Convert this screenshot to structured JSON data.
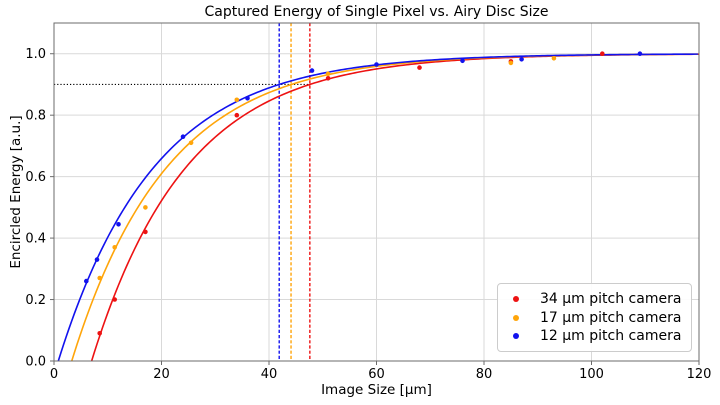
{
  "chart_data": {
    "type": "scatter",
    "title": "Captured Energy of Single Pixel vs. Airy Disc Size",
    "xlabel": "Image Size [μm]",
    "ylabel": "Encircled Energy [a.u.]",
    "xlim": [
      0,
      120
    ],
    "ylim": [
      0,
      1.1
    ],
    "xticks": [
      0,
      20,
      40,
      60,
      80,
      100,
      120
    ],
    "yticks": [
      0.0,
      0.2,
      0.4,
      0.6,
      0.8,
      1.0
    ],
    "grid": true,
    "legend_position": "lower right",
    "colors": {
      "grid": "#d9d9d9",
      "spine": "#6b6b6b",
      "text": "#000000",
      "red_series": "#ed1212",
      "orange_series": "#ffa50a",
      "blue_series": "#1212ee"
    },
    "series": [
      {
        "id": "34um",
        "name": "34 μm pitch camera",
        "color": "#ed1212",
        "x": [
          8.5,
          11.3,
          17,
          34,
          51,
          68,
          85,
          102
        ],
        "y": [
          0.09,
          0.2,
          0.42,
          0.8,
          0.92,
          0.955,
          0.975,
          1.0
        ],
        "fit": {
          "model": "y = 1 - exp(-(x - x0)/tau)",
          "x0": 7.0,
          "tau": 17.63
        },
        "ee90_crossing_x": 47.6
      },
      {
        "id": "17um",
        "name": "17 μm pitch camera",
        "color": "#ffa50a",
        "x": [
          8.5,
          11.3,
          17,
          25.5,
          34,
          51,
          85,
          93
        ],
        "y": [
          0.27,
          0.37,
          0.5,
          0.71,
          0.85,
          0.935,
          0.97,
          0.985
        ],
        "fit": {
          "model": "y = 1 - exp(-(x - x0)/tau)",
          "x0": 3.3,
          "tau": 17.75
        },
        "ee90_crossing_x": 44.1
      },
      {
        "id": "12um",
        "name": "12 μm pitch camera",
        "color": "#1212ee",
        "x": [
          6,
          8,
          12,
          24,
          36,
          48,
          60,
          76,
          87,
          109
        ],
        "y": [
          0.26,
          0.33,
          0.445,
          0.73,
          0.855,
          0.945,
          0.965,
          0.977,
          0.982,
          1.0
        ],
        "fit": {
          "model": "y = 1 - exp(-(x - x0)/tau)",
          "x0": 0.8,
          "tau": 17.85
        },
        "ee90_crossing_x": 41.9
      }
    ],
    "annotations": {
      "h_dotted_line": {
        "y": 0.9,
        "x_start": 0,
        "x_end": 47.6,
        "color": "#000000",
        "style": "dotted"
      },
      "v_dashed_lines": [
        {
          "id": "12um",
          "x": 41.9,
          "color": "#1212ee",
          "style": "dashed"
        },
        {
          "id": "17um",
          "x": 44.1,
          "color": "#ffa50a",
          "style": "dashed"
        },
        {
          "id": "34um",
          "x": 47.6,
          "color": "#ed1212",
          "style": "dashed"
        }
      ]
    }
  },
  "legend": {
    "items": [
      {
        "label": "34 μm pitch camera",
        "color": "#ed1212"
      },
      {
        "label": "17 μm pitch camera",
        "color": "#ffa50a"
      },
      {
        "label": "12 μm pitch camera",
        "color": "#1212ee"
      }
    ]
  }
}
